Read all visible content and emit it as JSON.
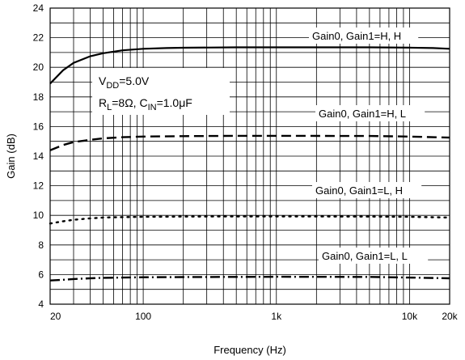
{
  "chart_data": {
    "type": "line",
    "x_scale": "log",
    "xlim": [
      20,
      20000
    ],
    "ylim": [
      4,
      24
    ],
    "xlabel": "Frequency (Hz)",
    "ylabel": "Gain (dB)",
    "grid": true,
    "x_ticks": [
      {
        "value": 20,
        "label": "20"
      },
      {
        "value": 100,
        "label": "100"
      },
      {
        "value": 1000,
        "label": "1k"
      },
      {
        "value": 10000,
        "label": "10k"
      },
      {
        "value": 20000,
        "label": "20k"
      }
    ],
    "y_ticks": [
      4,
      6,
      8,
      10,
      12,
      14,
      16,
      18,
      20,
      22,
      24
    ],
    "conditions": {
      "line1": {
        "main": "V",
        "sub": "DD",
        "rest": "=5.0V"
      },
      "line2": {
        "a": "R",
        "a_sub": "L",
        "b": "=8Ω, C",
        "b_sub": "IN",
        "c": "=1.0μF"
      }
    },
    "series": [
      {
        "name": "Gain0, Gain1=H, H",
        "style": "solid",
        "x": [
          20,
          25,
          30,
          40,
          50,
          70,
          100,
          150,
          200,
          500,
          1000,
          2000,
          5000,
          10000,
          15000,
          20000
        ],
        "y": [
          18.9,
          19.8,
          20.3,
          20.75,
          20.95,
          21.15,
          21.25,
          21.3,
          21.32,
          21.35,
          21.35,
          21.35,
          21.35,
          21.33,
          21.3,
          21.25
        ]
      },
      {
        "name": "Gain0, Gain1=H, L",
        "style": "dashed",
        "x": [
          20,
          25,
          30,
          40,
          50,
          70,
          100,
          200,
          500,
          1000,
          5000,
          10000,
          20000
        ],
        "y": [
          14.4,
          14.75,
          14.95,
          15.1,
          15.2,
          15.28,
          15.32,
          15.35,
          15.37,
          15.37,
          15.36,
          15.32,
          15.25
        ]
      },
      {
        "name": "Gain0, Gain1=L, H",
        "style": "dotted",
        "x": [
          20,
          25,
          30,
          40,
          50,
          70,
          100,
          200,
          500,
          1000,
          5000,
          10000,
          20000
        ],
        "y": [
          9.45,
          9.6,
          9.7,
          9.8,
          9.85,
          9.88,
          9.9,
          9.92,
          9.93,
          9.93,
          9.92,
          9.9,
          9.85
        ]
      },
      {
        "name": "Gain0, Gain1=L, L",
        "style": "dashdot",
        "x": [
          20,
          25,
          30,
          40,
          50,
          70,
          100,
          200,
          500,
          1000,
          5000,
          10000,
          20000
        ],
        "y": [
          5.6,
          5.65,
          5.7,
          5.75,
          5.78,
          5.8,
          5.82,
          5.83,
          5.84,
          5.85,
          5.84,
          5.8,
          5.75
        ]
      }
    ]
  }
}
